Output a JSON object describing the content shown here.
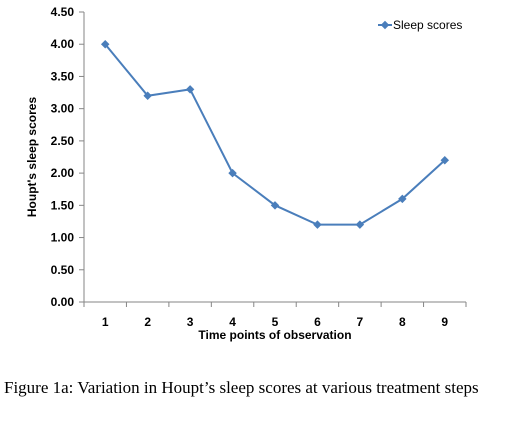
{
  "chart_data": {
    "type": "line",
    "title": "",
    "xlabel": "Time points of observation",
    "ylabel": "Houpt's sleep scores",
    "categories": [
      "1",
      "2",
      "3",
      "4",
      "5",
      "6",
      "7",
      "8",
      "9"
    ],
    "y_ticks": [
      "0.00",
      "0.50",
      "1.00",
      "1.50",
      "2.00",
      "2.50",
      "3.00",
      "3.50",
      "4.00",
      "4.50"
    ],
    "ylim": [
      0,
      4.5
    ],
    "grid": false,
    "legend_position": "top-right",
    "series": [
      {
        "name": "Sleep scores",
        "color": "#4a7ebb",
        "values": [
          4.0,
          3.2,
          3.3,
          2.0,
          1.5,
          1.2,
          1.2,
          1.6,
          2.2
        ]
      }
    ]
  },
  "caption": "Figure 1a: Variation in Houpt’s sleep scores at various treatment steps"
}
